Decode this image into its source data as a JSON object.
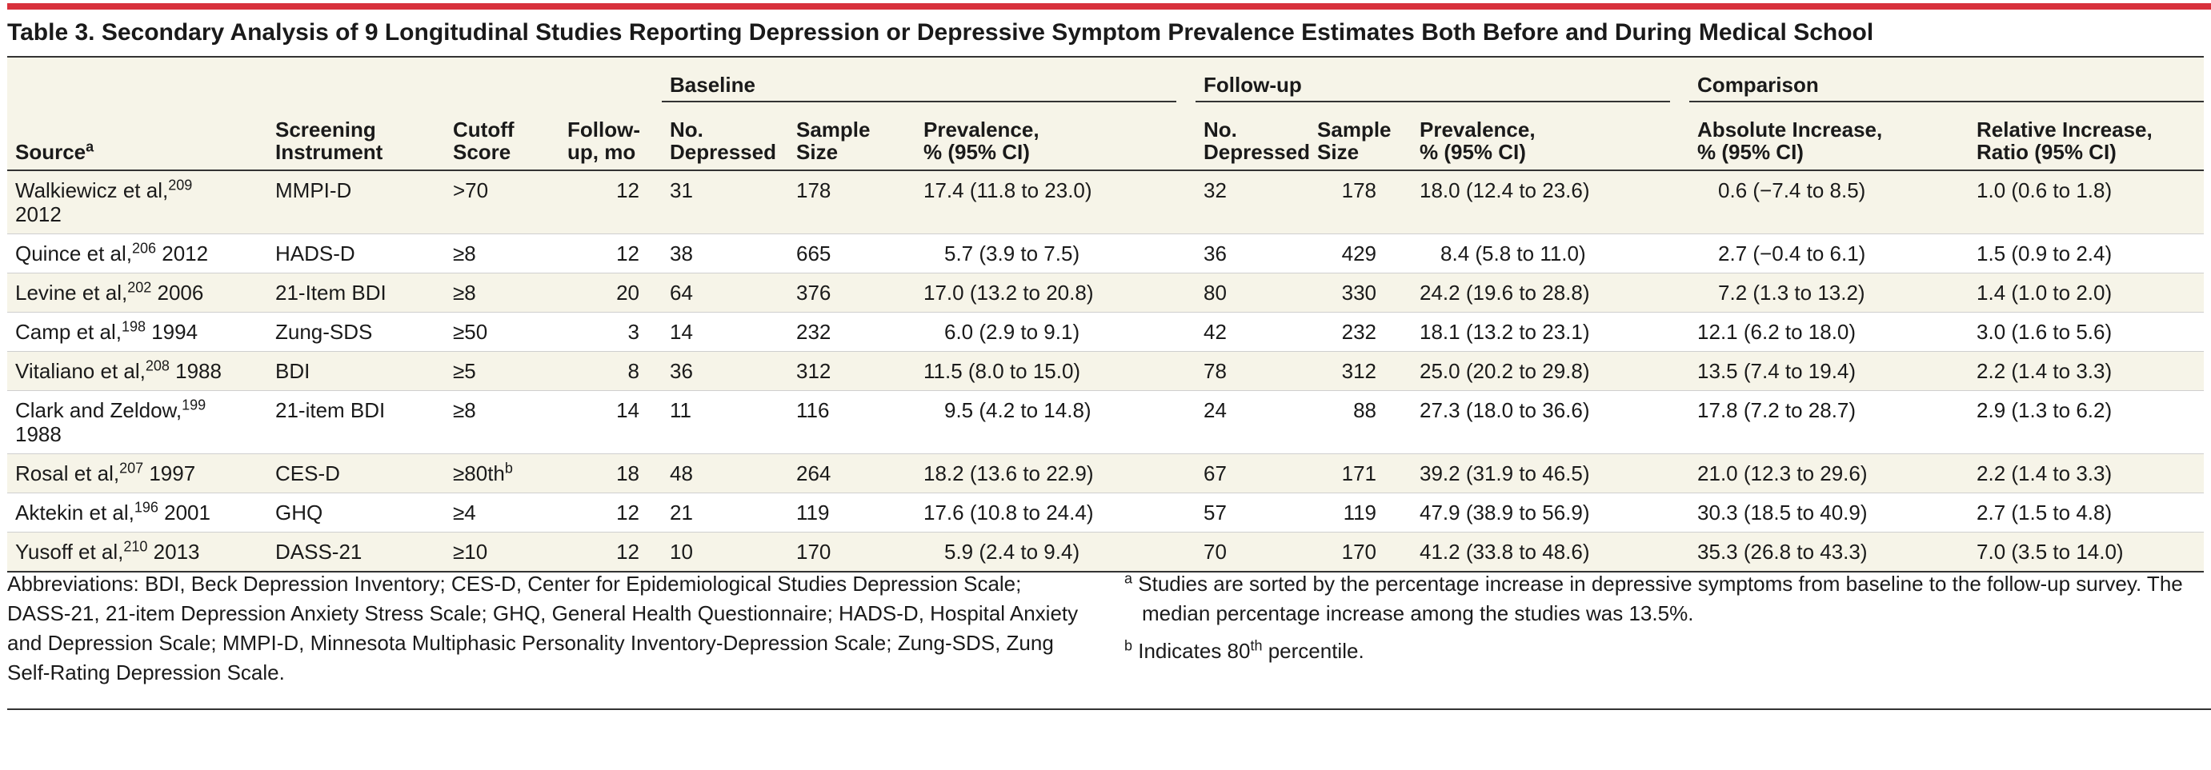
{
  "title": "Table 3. Secondary Analysis of 9 Longitudinal Studies Reporting Depression or Depressive Symptom Prevalence Estimates Both Before and During Medical School",
  "groups": {
    "baseline": "Baseline",
    "followup": "Follow-up",
    "comparison": "Comparison"
  },
  "columns": {
    "source": "Source",
    "source_sup": "a",
    "screening_1": "Screening",
    "screening_2": "Instrument",
    "cutoff_1": "Cutoff",
    "cutoff_2": "Score",
    "followup_1": "Follow-",
    "followup_2": "up, mo",
    "b_depressed_1": "No.",
    "b_depressed_2": "Depressed",
    "b_sample_1": "Sample",
    "b_sample_2": "Size",
    "b_prev_1": "Prevalence,",
    "b_prev_2": "% (95% CI)",
    "f_depressed_1": "No.",
    "f_depressed_2": "Depressed",
    "f_sample_1": "Sample",
    "f_sample_2": "Size",
    "f_prev_1": "Prevalence,",
    "f_prev_2": "% (95% CI)",
    "abs_1": "Absolute Increase,",
    "abs_2": "% (95% CI)",
    "rel_1": "Relative Increase,",
    "rel_2": "Ratio (95% CI)"
  },
  "rows": [
    {
      "source": "Walkiewicz et al,",
      "ref": "209",
      "year": "",
      "source_line2": "2012",
      "instrument": "MMPI-D",
      "cutoff": ">70",
      "cutoff_sup": "",
      "followup": "12",
      "b_dep": "31",
      "b_size": "178",
      "b_prev": "17.4 (11.8 to 23.0)",
      "f_dep": "32",
      "f_size": "178",
      "f_prev": "18.0 (12.4 to 23.6)",
      "abs": "0.6 (−7.4 to 8.5)",
      "rel": "1.0 (0.6 to 1.8)"
    },
    {
      "source": "Quince et al,",
      "ref": "206",
      "year": " 2012",
      "source_line2": "",
      "instrument": "HADS-D",
      "cutoff": "≥8",
      "cutoff_sup": "",
      "followup": "12",
      "b_dep": "38",
      "b_size": "665",
      "b_prev": "5.7 (3.9 to 7.5)",
      "f_dep": "36",
      "f_size": "429",
      "f_prev": "8.4 (5.8 to 11.0)",
      "abs": "2.7 (−0.4 to 6.1)",
      "rel": "1.5 (0.9 to 2.4)"
    },
    {
      "source": "Levine et al,",
      "ref": "202",
      "year": " 2006",
      "source_line2": "",
      "instrument": "21-Item BDI",
      "cutoff": "≥8",
      "cutoff_sup": "",
      "followup": "20",
      "b_dep": "64",
      "b_size": "376",
      "b_prev": "17.0 (13.2 to 20.8)",
      "f_dep": "80",
      "f_size": "330",
      "f_prev": "24.2 (19.6 to 28.8)",
      "abs": "7.2 (1.3 to 13.2)",
      "rel": "1.4 (1.0 to 2.0)"
    },
    {
      "source": "Camp et al,",
      "ref": "198",
      "year": " 1994",
      "source_line2": "",
      "instrument": "Zung-SDS",
      "cutoff": "≥50",
      "cutoff_sup": "",
      "followup": "3",
      "b_dep": "14",
      "b_size": "232",
      "b_prev": "6.0 (2.9 to 9.1)",
      "f_dep": "42",
      "f_size": "232",
      "f_prev": "18.1 (13.2 to 23.1)",
      "abs": "12.1 (6.2 to 18.0)",
      "rel": "3.0 (1.6 to 5.6)"
    },
    {
      "source": "Vitaliano et al,",
      "ref": "208",
      "year": " 1988",
      "source_line2": "",
      "instrument": "BDI",
      "cutoff": "≥5",
      "cutoff_sup": "",
      "followup": "8",
      "b_dep": "36",
      "b_size": "312",
      "b_prev": "11.5 (8.0 to 15.0)",
      "f_dep": "78",
      "f_size": "312",
      "f_prev": "25.0 (20.2 to 29.8)",
      "abs": "13.5 (7.4 to 19.4)",
      "rel": "2.2 (1.4 to 3.3)"
    },
    {
      "source": "Clark and Zeldow,",
      "ref": "199",
      "year": "",
      "source_line2": "1988",
      "instrument": "21-item BDI",
      "cutoff": "≥8",
      "cutoff_sup": "",
      "followup": "14",
      "b_dep": "11",
      "b_size": "116",
      "b_prev": "9.5 (4.2 to 14.8)",
      "f_dep": "24",
      "f_size": "88",
      "f_prev": "27.3 (18.0 to 36.6)",
      "abs": "17.8 (7.2 to 28.7)",
      "rel": "2.9 (1.3 to 6.2)"
    },
    {
      "source": "Rosal et al,",
      "ref": "207",
      "year": " 1997",
      "source_line2": "",
      "instrument": "CES-D",
      "cutoff": "≥80th",
      "cutoff_sup": "b",
      "followup": "18",
      "b_dep": "48",
      "b_size": "264",
      "b_prev": "18.2 (13.6 to 22.9)",
      "f_dep": "67",
      "f_size": "171",
      "f_prev": "39.2 (31.9 to 46.5)",
      "abs": "21.0 (12.3 to 29.6)",
      "rel": "2.2 (1.4 to 3.3)"
    },
    {
      "source": "Aktekin et al,",
      "ref": "196",
      "year": " 2001",
      "source_line2": "",
      "instrument": "GHQ",
      "cutoff": "≥4",
      "cutoff_sup": "",
      "followup": "12",
      "b_dep": "21",
      "b_size": "119",
      "b_prev": "17.6 (10.8 to 24.4)",
      "f_dep": "57",
      "f_size": "119",
      "f_prev": "47.9 (38.9 to 56.9)",
      "abs": "30.3 (18.5 to 40.9)",
      "rel": "2.7 (1.5 to 4.8)"
    },
    {
      "source": "Yusoff et al,",
      "ref": "210",
      "year": " 2013",
      "source_line2": "",
      "instrument": "DASS-21",
      "cutoff": "≥10",
      "cutoff_sup": "",
      "followup": "12",
      "b_dep": "10",
      "b_size": "170",
      "b_prev": "5.9 (2.4 to 9.4)",
      "f_dep": "70",
      "f_size": "170",
      "f_prev": "41.2 (33.8 to 48.6)",
      "abs": "35.3 (26.8 to 43.3)",
      "rel": "7.0 (3.5 to 14.0)"
    }
  ],
  "footnotes": {
    "abbreviations": "Abbreviations: BDI, Beck Depression Inventory; CES-D, Center for Epidemiological Studies Depression Scale; DASS-21, 21-item Depression Anxiety Stress Scale; GHQ, General Health Questionnaire; HADS-D, Hospital Anxiety and Depression Scale; MMPI-D, Minnesota Multiphasic Personality Inventory-Depression Scale; Zung-SDS, Zung Self-Rating Depression Scale.",
    "a_mark": "a",
    "a_text": "Studies are sorted by the percentage increase in depressive symptoms from baseline to the follow-up survey. The median percentage increase among the studies was 13.5%.",
    "b_mark": "b",
    "b_text_pre": "Indicates 80",
    "b_text_sup": "th",
    "b_text_post": " percentile."
  },
  "colors": {
    "accent_red": "#d8313c",
    "band": "#f6f4e8"
  }
}
